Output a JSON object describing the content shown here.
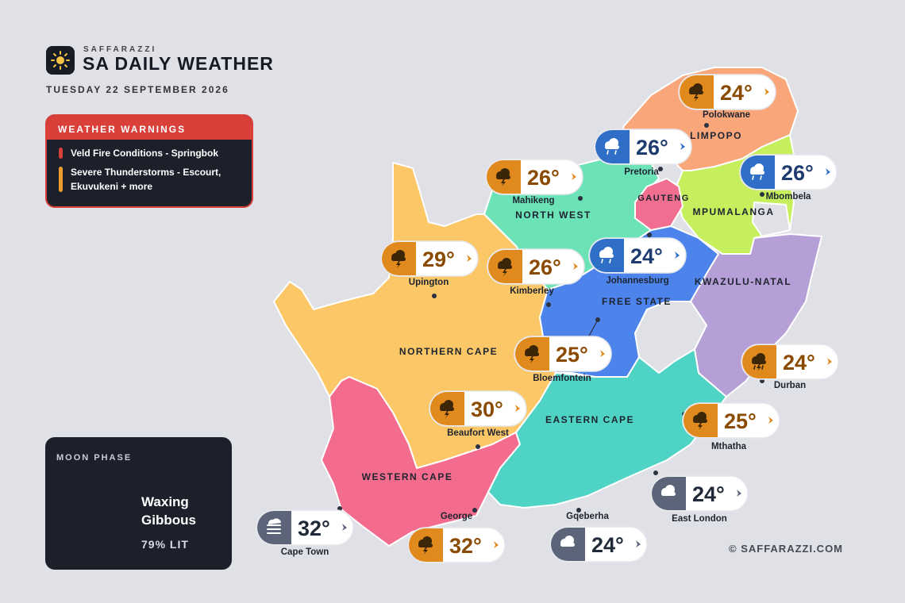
{
  "header": {
    "brand": "SAFFARAZZI",
    "title": "SA DAILY WEATHER",
    "date": "TUESDAY 22 SEPTEMBER 2026"
  },
  "warnings": {
    "title": "WEATHER WARNINGS",
    "items": [
      {
        "text": "Veld Fire Conditions - Springbok",
        "color": "#d9403a"
      },
      {
        "text": "Severe Thunderstorms - Escourt, Ekuvukeni + more",
        "color": "#ee9a2c"
      }
    ]
  },
  "moon": {
    "title": "MOON PHASE",
    "phase": "Waxing Gibbous",
    "illumination": "79% LIT"
  },
  "provinces": [
    {
      "name": "LIMPOPO"
    },
    {
      "name": "GAUTENG"
    },
    {
      "name": "NORTH WEST"
    },
    {
      "name": "MPUMALANGA"
    },
    {
      "name": "FREE STATE"
    },
    {
      "name": "KWAZULU-NATAL"
    },
    {
      "name": "NORTHERN CAPE"
    },
    {
      "name": "EASTERN CAPE"
    },
    {
      "name": "WESTERN CAPE"
    }
  ],
  "cities": [
    {
      "name": "Polokwane",
      "temp": "24°"
    },
    {
      "name": "Pretoria",
      "temp": "26°"
    },
    {
      "name": "Mbombela",
      "temp": "26°"
    },
    {
      "name": "Mahikeng",
      "temp": "26°"
    },
    {
      "name": "Upington",
      "temp": "29°"
    },
    {
      "name": "Kimberley",
      "temp": "26°"
    },
    {
      "name": "Johannesburg",
      "temp": "24°"
    },
    {
      "name": "Bloemfontein",
      "temp": "25°"
    },
    {
      "name": "Durban",
      "temp": "24°"
    },
    {
      "name": "Beaufort West",
      "temp": "30°"
    },
    {
      "name": "Mthatha",
      "temp": "25°"
    },
    {
      "name": "East London",
      "temp": "24°"
    },
    {
      "name": "Cape Town",
      "temp": "32°"
    },
    {
      "name": "George",
      "temp": "32°"
    },
    {
      "name": "Gqeberha",
      "temp": "24°"
    }
  ],
  "footer": "© SAFFARAZZI.COM"
}
